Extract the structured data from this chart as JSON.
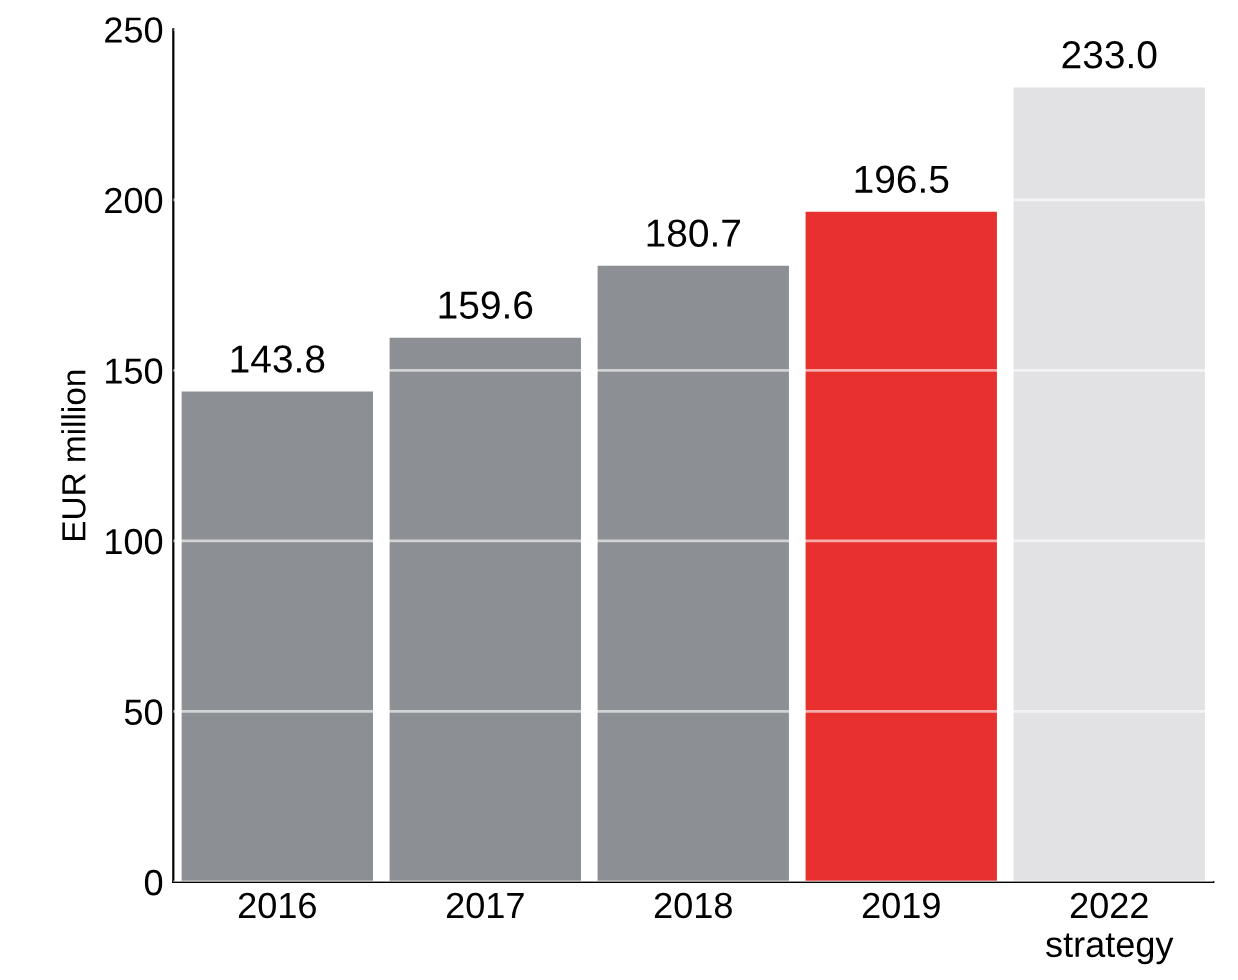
{
  "chart_data": {
    "type": "bar",
    "ylabel": "EUR million",
    "categories": [
      "2016",
      "2017",
      "2018",
      "2019",
      "2022\nstrategy"
    ],
    "values": [
      143.8,
      159.6,
      180.7,
      196.5,
      233.0
    ],
    "value_labels": [
      "143.8",
      "159.6",
      "180.7",
      "196.5",
      "233.0"
    ],
    "colors": [
      "#8c8f93",
      "#8c8f93",
      "#8c8f93",
      "#e8302e",
      "#e2e2e5"
    ],
    "ylim": [
      0,
      250
    ],
    "yticks": [
      0,
      50,
      100,
      150,
      200,
      250
    ],
    "grid": "y"
  }
}
